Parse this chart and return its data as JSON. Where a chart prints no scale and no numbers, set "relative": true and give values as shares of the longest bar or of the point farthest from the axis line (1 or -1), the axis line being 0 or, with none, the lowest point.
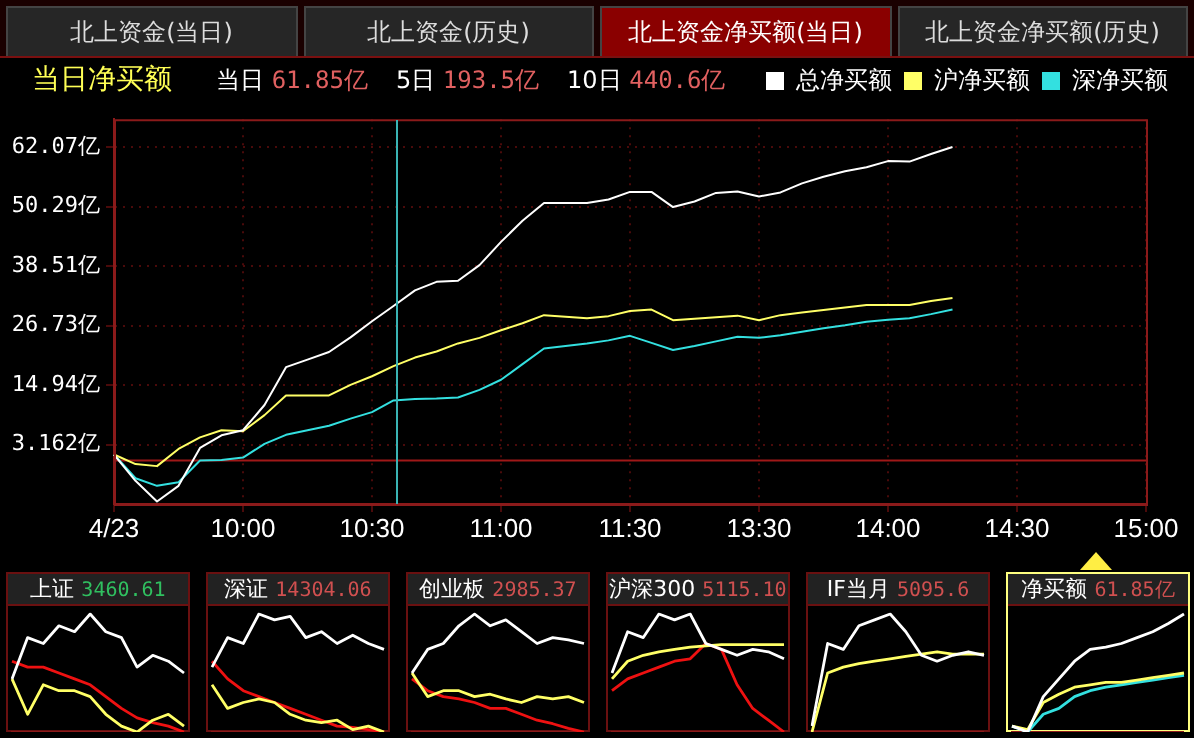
{
  "chart_data": [
    {
      "type": "line",
      "title": "当日净买额",
      "annotations": [
        "北上资金(当日)",
        "北上资金(历史)",
        "北上资金净买额(当日)",
        "北上资金净买额(历史)",
        "当日 61.85亿",
        "5日 193.5亿",
        "10日 440.6亿"
      ],
      "categories": [
        "4/23",
        null,
        null,
        null,
        null,
        null,
        "10:00",
        null,
        null,
        null,
        null,
        null,
        "10:30",
        null,
        null,
        null,
        null,
        null,
        "11:00",
        null,
        null,
        null,
        null,
        null,
        "11:30",
        null,
        null,
        null,
        null,
        null,
        "13:30",
        null,
        null,
        null,
        null,
        null,
        "14:00",
        null,
        null,
        null,
        null,
        null,
        "14:30",
        null,
        null,
        null,
        null,
        null,
        "15:00"
      ],
      "ylim": [
        -8.6,
        67.6
      ],
      "yticks": [
        {
          "value": 3.162,
          "label": "3.162亿"
        },
        {
          "value": 14.94,
          "label": "14.94亿"
        },
        {
          "value": 26.73,
          "label": "26.73亿"
        },
        {
          "value": 38.51,
          "label": "38.51亿"
        },
        {
          "value": 50.29,
          "label": "50.29亿"
        },
        {
          "value": 62.07,
          "label": "62.07亿"
        }
      ],
      "grid": true,
      "legend": "top right",
      "marker": "none",
      "ref_lines": [
        {
          "axis": "y",
          "value": 0,
          "color": "#a01818"
        }
      ],
      "series": [
        {
          "name": "总净买额",
          "color": "#ffffff",
          "values": [
            1.2,
            -4,
            -8.1,
            -5,
            2.5,
            5,
            6,
            11,
            18.5,
            20,
            21.5,
            24.4,
            27.6,
            30.6,
            33.7,
            35.4,
            35.6,
            38.7,
            43.3,
            47.5,
            51,
            51,
            51,
            51.7,
            53.2,
            53.2,
            50.2,
            51.3,
            53,
            53.3,
            52.3,
            53.1,
            54.9,
            56.2,
            57.3,
            58.1,
            59.3,
            59.2,
            60.7,
            62.1,
            null,
            null,
            null,
            null,
            null,
            null,
            null,
            null,
            null
          ]
        },
        {
          "name": "沪净买额",
          "color": "#ffff66",
          "values": [
            1.2,
            -0.7,
            -1.1,
            2.3,
            4.6,
            6,
            5.8,
            9,
            12.9,
            12.9,
            12.9,
            15,
            16.7,
            18.7,
            20.4,
            21.6,
            23.2,
            24.3,
            25.8,
            27.2,
            28.8,
            28.5,
            28.2,
            28.6,
            29.6,
            29.9,
            27.8,
            28.1,
            28.4,
            28.7,
            27.8,
            28.8,
            29.3,
            29.8,
            30.3,
            30.8,
            30.8,
            30.8,
            31.6,
            32.2,
            null,
            null,
            null,
            null,
            null,
            null,
            null,
            null,
            null
          ]
        },
        {
          "name": "深净买额",
          "color": "#33e0e0",
          "values": [
            1.2,
            -3.5,
            -5,
            -4.3,
            0,
            0.1,
            0.6,
            3.3,
            5.1,
            6,
            6.9,
            8.3,
            9.6,
            11.9,
            12.2,
            12.3,
            12.5,
            14,
            16,
            19.1,
            22.2,
            22.7,
            23.2,
            23.8,
            24.7,
            23.3,
            21.9,
            22.7,
            23.6,
            24.5,
            24.3,
            24.8,
            25.5,
            26.2,
            26.8,
            27.5,
            27.9,
            28.2,
            29,
            29.9,
            null,
            null,
            null,
            null,
            null,
            null,
            null,
            null,
            null
          ]
        }
      ]
    },
    {
      "type": "line",
      "title": "上证",
      "subtitle": "3460.61",
      "relative": true,
      "categories": [
        null,
        null,
        null,
        null,
        null,
        null,
        null,
        null,
        null,
        null,
        null,
        null
      ],
      "series": [
        {
          "color": "#ffffff",
          "values": [
            0.45,
            0.8,
            0.75,
            0.9,
            0.85,
            1,
            0.85,
            0.8,
            0.55,
            0.65,
            0.6,
            0.5
          ]
        },
        {
          "color": "#ffff66",
          "values": [
            0.45,
            0.15,
            0.4,
            0.35,
            0.35,
            0.3,
            0.15,
            0.05,
            0,
            0.1,
            0.15,
            0.05
          ]
        },
        {
          "color": "#ee1111",
          "values": [
            0.6,
            0.55,
            0.55,
            0.5,
            0.45,
            0.4,
            0.3,
            0.2,
            0.12,
            0.08,
            0.05,
            0
          ]
        }
      ]
    },
    {
      "type": "line",
      "title": "深证",
      "subtitle": "14304.06",
      "relative": true,
      "categories": [
        null,
        null,
        null,
        null,
        null,
        null,
        null,
        null,
        null,
        null,
        null,
        null
      ],
      "series": [
        {
          "color": "#ffffff",
          "values": [
            0.55,
            0.8,
            0.75,
            1,
            0.95,
            0.98,
            0.8,
            0.85,
            0.75,
            0.82,
            0.75,
            0.7
          ]
        },
        {
          "color": "#ffff66",
          "values": [
            0.4,
            0.2,
            0.25,
            0.28,
            0.25,
            0.15,
            0.1,
            0.08,
            0.1,
            0.02,
            0.05,
            0
          ]
        },
        {
          "color": "#ee1111",
          "values": [
            0.6,
            0.45,
            0.35,
            0.3,
            0.25,
            0.2,
            0.15,
            0.1,
            0.05,
            0.04,
            0.02,
            0
          ]
        }
      ]
    },
    {
      "type": "line",
      "title": "创业板",
      "subtitle": "2985.37",
      "relative": true,
      "categories": [
        null,
        null,
        null,
        null,
        null,
        null,
        null,
        null,
        null,
        null,
        null,
        null
      ],
      "series": [
        {
          "color": "#ffffff",
          "values": [
            0.5,
            0.7,
            0.75,
            0.9,
            1,
            0.9,
            0.95,
            0.85,
            0.75,
            0.8,
            0.78,
            0.75
          ]
        },
        {
          "color": "#ffff66",
          "values": [
            0.5,
            0.3,
            0.35,
            0.35,
            0.3,
            0.32,
            0.28,
            0.25,
            0.3,
            0.28,
            0.3,
            0.25
          ]
        },
        {
          "color": "#ee1111",
          "values": [
            0.45,
            0.35,
            0.3,
            0.28,
            0.25,
            0.2,
            0.2,
            0.15,
            0.1,
            0.07,
            0.03,
            0
          ]
        }
      ]
    },
    {
      "type": "line",
      "title": "沪深300",
      "subtitle": "5115.10",
      "relative": true,
      "categories": [
        null,
        null,
        null,
        null,
        null,
        null,
        null,
        null,
        null,
        null,
        null,
        null
      ],
      "series": [
        {
          "color": "#ffffff",
          "values": [
            0.5,
            0.85,
            0.8,
            1,
            0.95,
            1,
            0.75,
            0.7,
            0.65,
            0.7,
            0.68,
            0.62
          ]
        },
        {
          "color": "#ffff66",
          "values": [
            0.45,
            0.6,
            0.65,
            0.68,
            0.7,
            0.72,
            0.73,
            0.74,
            0.74,
            0.74,
            0.74,
            0.74
          ]
        },
        {
          "color": "#ee1111",
          "values": [
            0.35,
            0.45,
            0.5,
            0.55,
            0.6,
            0.62,
            0.75,
            0.7,
            0.4,
            0.2,
            0.1,
            0
          ]
        }
      ]
    },
    {
      "type": "line",
      "title": "IF当月",
      "subtitle": "5095.6",
      "relative": true,
      "categories": [
        null,
        null,
        null,
        null,
        null,
        null,
        null,
        null,
        null,
        null,
        null,
        null
      ],
      "series": [
        {
          "color": "#ffffff",
          "values": [
            0.05,
            0.75,
            0.7,
            0.9,
            0.95,
            1,
            0.85,
            0.65,
            0.6,
            0.65,
            0.68,
            0.65
          ]
        },
        {
          "color": "#ffff66",
          "values": [
            0,
            0.5,
            0.55,
            0.58,
            0.6,
            0.62,
            0.64,
            0.66,
            0.68,
            0.66,
            0.66,
            0.66
          ]
        }
      ]
    },
    {
      "type": "line",
      "title": "净买额",
      "subtitle": "61.85亿",
      "relative": true,
      "categories": [
        null,
        null,
        null,
        null,
        null,
        null,
        null,
        null,
        null,
        null,
        null,
        null
      ],
      "series": [
        {
          "color": "#ffffff",
          "values": [
            0.05,
            0,
            0.3,
            0.45,
            0.6,
            0.7,
            0.72,
            0.75,
            0.8,
            0.85,
            0.92,
            1
          ]
        },
        {
          "color": "#ffff66",
          "values": [
            0.05,
            0.02,
            0.25,
            0.32,
            0.38,
            0.4,
            0.42,
            0.42,
            0.44,
            0.46,
            0.48,
            0.5
          ]
        },
        {
          "color": "#33e0e0",
          "values": [
            0.05,
            0,
            0.15,
            0.2,
            0.3,
            0.35,
            0.38,
            0.4,
            0.42,
            0.44,
            0.46,
            0.48
          ]
        }
      ]
    }
  ]
}
